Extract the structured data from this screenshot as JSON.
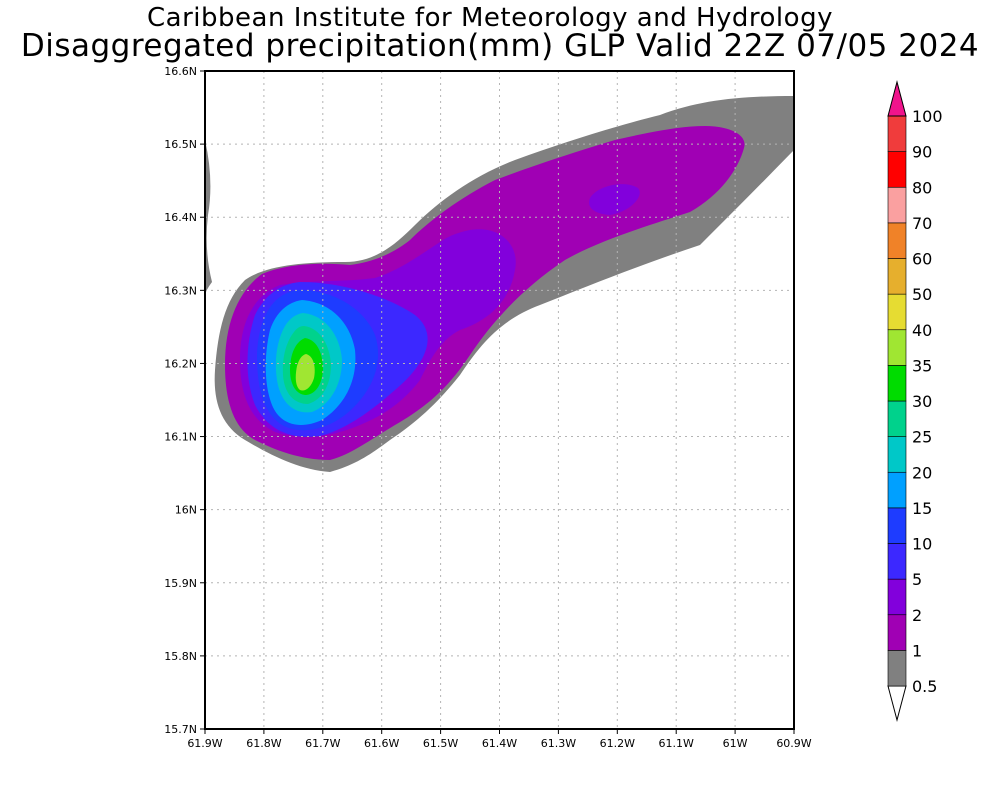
{
  "title": {
    "line1": "Caribbean Institute for Meteorology and Hydrology",
    "line2": "Disaggregated precipitation(mm) GLP Valid 22Z 07/05 2024"
  },
  "axes": {
    "x_ticks": [
      "61.9W",
      "61.8W",
      "61.7W",
      "61.6W",
      "61.5W",
      "61.4W",
      "61.3W",
      "61.2W",
      "61.1W",
      "61W",
      "60.9W"
    ],
    "y_ticks": [
      "16.6N",
      "16.5N",
      "16.4N",
      "16.3N",
      "16.2N",
      "16.1N",
      "16N",
      "15.9N",
      "15.8N",
      "15.7N"
    ],
    "x_range": [
      -61.9,
      -60.9
    ],
    "y_range": [
      15.7,
      16.6
    ],
    "grid": true
  },
  "colorbar": {
    "levels": [
      {
        "label": "0.5",
        "color": "#808080"
      },
      {
        "label": "1",
        "color": "#a000b4"
      },
      {
        "label": "2",
        "color": "#8200dc"
      },
      {
        "label": "5",
        "color": "#3c28ff"
      },
      {
        "label": "10",
        "color": "#1e3cff"
      },
      {
        "label": "15",
        "color": "#00a0ff"
      },
      {
        "label": "20",
        "color": "#00c8c8"
      },
      {
        "label": "25",
        "color": "#00d28c"
      },
      {
        "label": "30",
        "color": "#00dc00"
      },
      {
        "label": "35",
        "color": "#a0e632"
      },
      {
        "label": "40",
        "color": "#e6dc32"
      },
      {
        "label": "50",
        "color": "#e6af2d"
      },
      {
        "label": "60",
        "color": "#f08228"
      },
      {
        "label": "70",
        "color": "#faa0a0"
      },
      {
        "label": "80",
        "color": "#ff0000"
      },
      {
        "label": "90",
        "color": "#f03c3c"
      },
      {
        "label": "100",
        "color": "#f0148c"
      }
    ],
    "below_color": "#ffffff"
  },
  "precip_layers": [
    {
      "level": "0.5",
      "color": "#808080"
    },
    {
      "level": "1",
      "color": "#a000b4"
    },
    {
      "level": "2",
      "color": "#8200dc"
    },
    {
      "level": "5",
      "color": "#3c28ff"
    },
    {
      "level": "10",
      "color": "#1e3cff"
    },
    {
      "level": "15",
      "color": "#00a0ff"
    },
    {
      "level": "20",
      "color": "#00c8c8"
    },
    {
      "level": "25",
      "color": "#00d28c"
    },
    {
      "level": "30",
      "color": "#00dc00"
    },
    {
      "level": "35",
      "color": "#a0e632"
    }
  ]
}
